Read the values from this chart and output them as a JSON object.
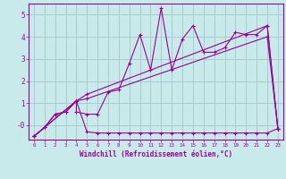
{
  "background_color": "#c8eaea",
  "grid_color": "#aacccc",
  "line_color": "#990099",
  "xlim": [
    -0.5,
    23.5
  ],
  "ylim": [
    -0.65,
    5.5
  ],
  "xlabel": "Windchill (Refroidissement éolien,°C)",
  "xticks": [
    0,
    1,
    2,
    3,
    4,
    5,
    6,
    7,
    8,
    9,
    10,
    11,
    12,
    13,
    14,
    15,
    16,
    17,
    18,
    19,
    20,
    21,
    22,
    23
  ],
  "yticks": [
    0,
    1,
    2,
    3,
    4,
    5
  ],
  "ytick_labels": [
    "-0",
    "1",
    "2",
    "3",
    "4",
    "5"
  ],
  "series": [
    {
      "x": [
        0,
        1,
        2,
        3,
        4,
        4,
        5,
        6,
        7,
        8,
        9,
        10,
        11,
        12,
        13,
        14,
        15,
        16,
        17,
        18,
        19,
        20,
        21,
        22,
        23
      ],
      "y": [
        -0.5,
        -0.1,
        0.5,
        0.6,
        1.1,
        0.6,
        0.5,
        0.5,
        1.5,
        1.6,
        2.8,
        4.1,
        2.5,
        5.3,
        2.5,
        3.9,
        4.5,
        3.3,
        3.3,
        3.5,
        4.2,
        4.1,
        4.1,
        4.5,
        -0.15
      ]
    },
    {
      "x": [
        0,
        4,
        5,
        22,
        23
      ],
      "y": [
        -0.5,
        1.1,
        1.4,
        4.5,
        -0.15
      ]
    },
    {
      "x": [
        0,
        4,
        5,
        22,
        23
      ],
      "y": [
        -0.5,
        1.1,
        1.2,
        4.0,
        -0.15
      ]
    },
    {
      "x": [
        0,
        1,
        2,
        3,
        4,
        5,
        6,
        7,
        8,
        9,
        10,
        11,
        12,
        13,
        14,
        15,
        16,
        17,
        18,
        19,
        20,
        21,
        22,
        23
      ],
      "y": [
        -0.5,
        -0.1,
        0.5,
        0.6,
        1.1,
        -0.3,
        -0.35,
        -0.35,
        -0.35,
        -0.35,
        -0.35,
        -0.35,
        -0.35,
        -0.35,
        -0.35,
        -0.35,
        -0.35,
        -0.35,
        -0.35,
        -0.35,
        -0.35,
        -0.35,
        -0.35,
        -0.15
      ]
    }
  ]
}
